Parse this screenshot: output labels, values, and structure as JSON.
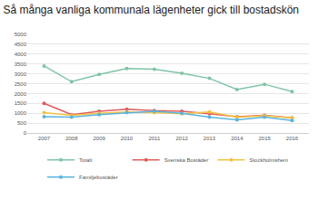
{
  "chart_data": {
    "type": "line",
    "title": "Så många vanliga kommunala lägenheter gick till bostadskön",
    "categories": [
      "2007",
      "2008",
      "2009",
      "2010",
      "2011",
      "2012",
      "2013",
      "2014",
      "2015",
      "2016"
    ],
    "series": [
      {
        "name": "Totalt",
        "color": "#7fc4a6",
        "values": [
          3400,
          2600,
          2970,
          3270,
          3230,
          3030,
          2770,
          2200,
          2470,
          2100
        ]
      },
      {
        "name": "Svenska Bostäder",
        "color": "#e05c5c",
        "values": [
          1500,
          930,
          1100,
          1200,
          1130,
          1100,
          970,
          830,
          900,
          770
        ]
      },
      {
        "name": "Stockholmshem",
        "color": "#f4c244",
        "values": [
          1030,
          900,
          1000,
          1070,
          1030,
          970,
          1070,
          800,
          870,
          770
        ]
      },
      {
        "name": "Familjebostäder",
        "color": "#5ab4de",
        "values": [
          830,
          800,
          930,
          1030,
          1100,
          1000,
          800,
          670,
          800,
          630
        ]
      }
    ],
    "ylim": [
      0,
      5000
    ],
    "yticks": [
      0,
      500,
      1000,
      1500,
      2000,
      2500,
      3000,
      3500,
      4000,
      4500,
      5000
    ],
    "grid": true,
    "legend": "bottom",
    "marker": "circle"
  }
}
